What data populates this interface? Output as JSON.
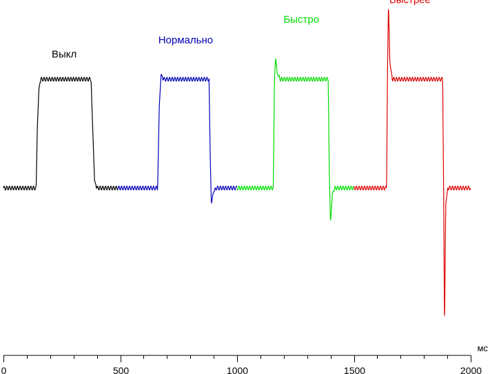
{
  "chart_data": {
    "type": "line",
    "title": "",
    "xlabel": "",
    "ylabel": "",
    "x_unit": "мс",
    "xlim": [
      0,
      2000
    ],
    "ylim": [
      -1.35,
      1.1
    ],
    "x_major_ticks": [
      0,
      500,
      1000,
      1500,
      2000
    ],
    "x_tick_labels": [
      "0",
      "500",
      "1000",
      "1500",
      "2000"
    ],
    "x_minor_step": 100,
    "grid": false,
    "legend": "none",
    "series": [
      {
        "name": "Выкл",
        "color": "#000000",
        "range": [
          0,
          490
        ],
        "x": [
          0,
          140,
          145,
          152,
          160,
          375,
          382,
          390,
          400,
          490
        ],
        "y": [
          0,
          0,
          0.55,
          0.92,
          1.0,
          1.0,
          0.55,
          0.07,
          0,
          0
        ]
      },
      {
        "name": "Нормально",
        "color": "#0000b4",
        "range": [
          490,
          1000
        ],
        "x": [
          490,
          660,
          667,
          675,
          685,
          880,
          885,
          890,
          897,
          910,
          1000
        ],
        "y": [
          0,
          0,
          0.75,
          1.05,
          1.0,
          1.0,
          0.3,
          -0.15,
          -0.05,
          0,
          0
        ]
      },
      {
        "name": "Быстро",
        "color": "#00dc00",
        "range": [
          1000,
          1500
        ],
        "x": [
          1000,
          1155,
          1160,
          1165,
          1172,
          1185,
          1390,
          1395,
          1400,
          1408,
          1420,
          1500
        ],
        "y": [
          0,
          0,
          1.0,
          1.2,
          1.05,
          1.0,
          1.0,
          0.1,
          -0.32,
          -0.05,
          0,
          0
        ]
      },
      {
        "name": "Быстрее",
        "color": "#dc0000",
        "range": [
          1500,
          2000
        ],
        "x": [
          1500,
          1640,
          1644,
          1648,
          1654,
          1665,
          1880,
          1884,
          1888,
          1893,
          1902,
          1915,
          2000
        ],
        "y": [
          0,
          0,
          1.1,
          1.7,
          1.15,
          1.0,
          1.0,
          0.0,
          -1.3,
          -0.15,
          0,
          0,
          0
        ]
      }
    ],
    "annotations": [
      {
        "text": "Выкл",
        "series": 0,
        "x": 260,
        "y": 1.2
      },
      {
        "text": "Нормально",
        "series": 1,
        "x": 780,
        "y": 1.33
      },
      {
        "text": "Быстро",
        "series": 2,
        "x": 1275,
        "y": 1.52
      },
      {
        "text": "Быстрее",
        "series": 3,
        "x": 1740,
        "y": 1.7
      }
    ]
  }
}
